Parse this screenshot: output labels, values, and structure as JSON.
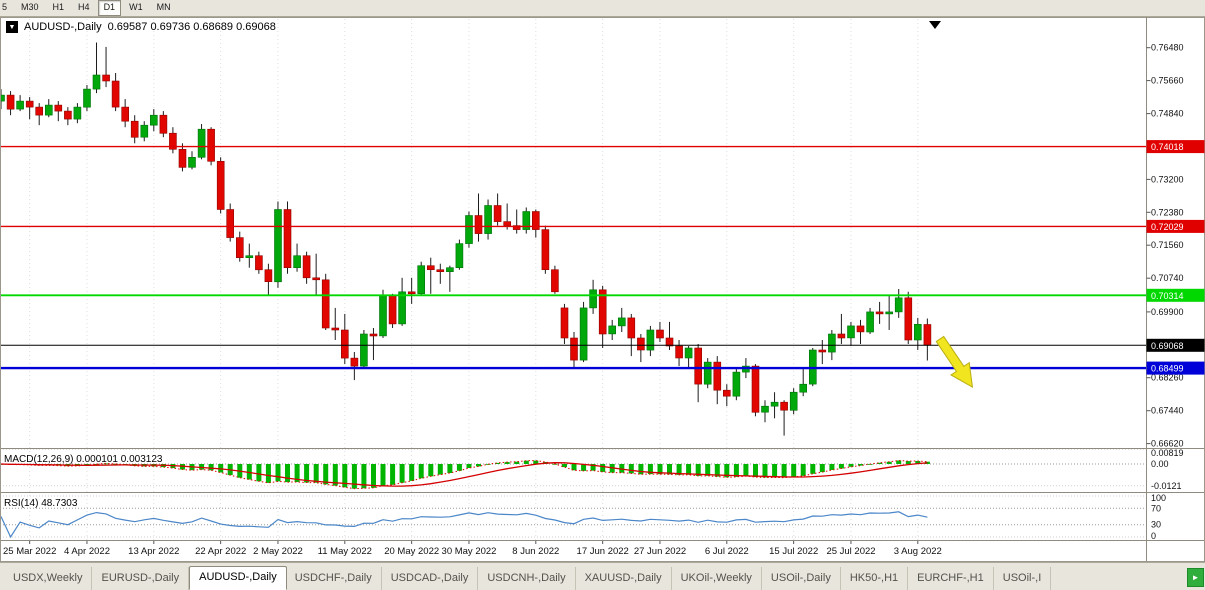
{
  "toolbar": {
    "timeframes": [
      {
        "label": "5",
        "active": false
      },
      {
        "label": "M30",
        "active": false
      },
      {
        "label": "H1",
        "active": false
      },
      {
        "label": "H4",
        "active": false
      },
      {
        "label": "D1",
        "active": true
      },
      {
        "label": "W1",
        "active": false
      },
      {
        "label": "MN",
        "active": false
      }
    ]
  },
  "legend": {
    "icon": "▼",
    "symbol": "AUDUSD-,Daily",
    "ohlc_text": "0.69587 0.69736 0.68689 0.69068"
  },
  "indicators": {
    "macd_label": "MACD(12,26,9) 0.000101 0.003123",
    "rsi_label": "RSI(14) 48.7303"
  },
  "axis": {
    "price_ticks": [
      "0.76480",
      "0.75660",
      "0.74840",
      "0.73200",
      "0.72380",
      "0.71560",
      "0.70740",
      "0.69900",
      "0.68260",
      "0.67440",
      "0.66620"
    ],
    "macd_ticks": [
      {
        "value": 0.00819,
        "label": "0.00819"
      },
      {
        "value": 0.0,
        "label": "0.00"
      },
      {
        "value": -0.0121,
        "label": "-0.0121"
      }
    ],
    "rsi_ticks": [
      {
        "value": 100,
        "label": "100"
      },
      {
        "value": 70,
        "label": "70"
      },
      {
        "value": 30,
        "label": "30"
      },
      {
        "value": 0,
        "label": "0"
      }
    ]
  },
  "levels": [
    {
      "price": 0.74018,
      "label": "0.74018",
      "color": "#e00000",
      "width": 1.4
    },
    {
      "price": 0.72029,
      "label": "0.72029",
      "color": "#e00000",
      "width": 1.4
    },
    {
      "price": 0.70314,
      "label": "0.70314",
      "color": "#00d800",
      "width": 1.8
    },
    {
      "price": 0.69068,
      "label": "0.69068",
      "color": "#000000",
      "width": 1
    },
    {
      "price": 0.68499,
      "label": "0.68499",
      "color": "#0000d8",
      "width": 2.4
    }
  ],
  "drawings": {
    "arrow_color": "#f0e51e",
    "marker_color": "#000000"
  },
  "tabs": {
    "items": [
      {
        "label": "USDX,Weekly",
        "active": false
      },
      {
        "label": "EURUSD-,Daily",
        "active": false
      },
      {
        "label": "AUDUSD-,Daily",
        "active": true
      },
      {
        "label": "USDCHF-,Daily",
        "active": false
      },
      {
        "label": "USDCAD-,Daily",
        "active": false
      },
      {
        "label": "USDCNH-,Daily",
        "active": false
      },
      {
        "label": "XAUUSD-,Daily",
        "active": false
      },
      {
        "label": "UKOil-,Weekly",
        "active": false
      },
      {
        "label": "USOil-,Daily",
        "active": false
      },
      {
        "label": "HK50-,H1",
        "active": false
      },
      {
        "label": "EURCHF-,H1",
        "active": false
      },
      {
        "label": "USOil-,I",
        "active": false
      }
    ],
    "scroll_right": "►"
  },
  "chart_data": {
    "type": "candlestick",
    "symbol": "AUDUSD",
    "timeframe": "Daily",
    "current_bar": {
      "open": 0.69587,
      "high": 0.69736,
      "low": 0.68689,
      "close": 0.69068
    },
    "colors": {
      "bull": "#00a80b",
      "bear": "#e10600",
      "background": "#ffffff"
    },
    "x_ticks": [
      {
        "i": 3,
        "label": "25 Mar 2022"
      },
      {
        "i": 9,
        "label": "4 Apr 2022"
      },
      {
        "i": 16,
        "label": "13 Apr 2022"
      },
      {
        "i": 23,
        "label": "22 Apr 2022"
      },
      {
        "i": 29,
        "label": "2 May 2022"
      },
      {
        "i": 36,
        "label": "11 May 2022"
      },
      {
        "i": 43,
        "label": "20 May 2022"
      },
      {
        "i": 49,
        "label": "30 May 2022"
      },
      {
        "i": 56,
        "label": "8 Jun 2022"
      },
      {
        "i": 63,
        "label": "17 Jun 2022"
      },
      {
        "i": 69,
        "label": "27 Jun 2022"
      },
      {
        "i": 76,
        "label": "6 Jul 2022"
      },
      {
        "i": 83,
        "label": "15 Jul 2022"
      },
      {
        "i": 89,
        "label": "25 Jul 2022"
      },
      {
        "i": 96,
        "label": "3 Aug 2022"
      }
    ],
    "candles": [
      [
        0.7515,
        0.7545,
        0.7495,
        0.753
      ],
      [
        0.753,
        0.754,
        0.748,
        0.7495
      ],
      [
        0.7495,
        0.753,
        0.749,
        0.7515
      ],
      [
        0.7515,
        0.7525,
        0.747,
        0.75
      ],
      [
        0.75,
        0.751,
        0.7455,
        0.748
      ],
      [
        0.748,
        0.752,
        0.7475,
        0.7505
      ],
      [
        0.7505,
        0.7515,
        0.7465,
        0.749
      ],
      [
        0.749,
        0.75,
        0.7455,
        0.747
      ],
      [
        0.747,
        0.751,
        0.746,
        0.75
      ],
      [
        0.75,
        0.7555,
        0.749,
        0.7545
      ],
      [
        0.7545,
        0.7661,
        0.7535,
        0.758
      ],
      [
        0.758,
        0.765,
        0.755,
        0.7565
      ],
      [
        0.7565,
        0.7585,
        0.749,
        0.75
      ],
      [
        0.75,
        0.752,
        0.745,
        0.7465
      ],
      [
        0.7465,
        0.748,
        0.741,
        0.7425
      ],
      [
        0.7425,
        0.7465,
        0.7415,
        0.7455
      ],
      [
        0.7455,
        0.7495,
        0.744,
        0.748
      ],
      [
        0.748,
        0.749,
        0.7425,
        0.7435
      ],
      [
        0.7435,
        0.745,
        0.7385,
        0.7395
      ],
      [
        0.7395,
        0.741,
        0.734,
        0.735
      ],
      [
        0.735,
        0.739,
        0.7345,
        0.7375
      ],
      [
        0.7375,
        0.7458,
        0.737,
        0.7445
      ],
      [
        0.7445,
        0.745,
        0.7355,
        0.7365
      ],
      [
        0.7365,
        0.7375,
        0.7235,
        0.7245
      ],
      [
        0.7245,
        0.726,
        0.7165,
        0.7175
      ],
      [
        0.7175,
        0.719,
        0.7115,
        0.7125
      ],
      [
        0.7125,
        0.716,
        0.71,
        0.713
      ],
      [
        0.713,
        0.714,
        0.7085,
        0.7095
      ],
      [
        0.7095,
        0.711,
        0.703,
        0.7065
      ],
      [
        0.7065,
        0.7265,
        0.705,
        0.7245
      ],
      [
        0.7245,
        0.7265,
        0.7085,
        0.71
      ],
      [
        0.71,
        0.716,
        0.709,
        0.713
      ],
      [
        0.713,
        0.714,
        0.706,
        0.7075
      ],
      [
        0.7075,
        0.7135,
        0.703,
        0.707
      ],
      [
        0.707,
        0.7085,
        0.6945,
        0.695
      ],
      [
        0.695,
        0.7,
        0.692,
        0.6945
      ],
      [
        0.6945,
        0.6985,
        0.686,
        0.6875
      ],
      [
        0.6875,
        0.689,
        0.682,
        0.6855
      ],
      [
        0.6855,
        0.6945,
        0.685,
        0.6935
      ],
      [
        0.6935,
        0.695,
        0.687,
        0.693
      ],
      [
        0.693,
        0.7045,
        0.6925,
        0.703
      ],
      [
        0.703,
        0.7035,
        0.695,
        0.696
      ],
      [
        0.696,
        0.7075,
        0.6955,
        0.704
      ],
      [
        0.704,
        0.7075,
        0.701,
        0.7035
      ],
      [
        0.7035,
        0.7115,
        0.703,
        0.7105
      ],
      [
        0.7105,
        0.7125,
        0.7035,
        0.7095
      ],
      [
        0.7095,
        0.711,
        0.706,
        0.709
      ],
      [
        0.709,
        0.7105,
        0.704,
        0.71
      ],
      [
        0.71,
        0.717,
        0.7095,
        0.716
      ],
      [
        0.716,
        0.724,
        0.715,
        0.723
      ],
      [
        0.723,
        0.7285,
        0.7165,
        0.7185
      ],
      [
        0.7185,
        0.727,
        0.717,
        0.7255
      ],
      [
        0.7255,
        0.7285,
        0.7205,
        0.7215
      ],
      [
        0.7215,
        0.726,
        0.7195,
        0.7205
      ],
      [
        0.7205,
        0.7245,
        0.7185,
        0.7195
      ],
      [
        0.7195,
        0.725,
        0.7185,
        0.724
      ],
      [
        0.724,
        0.7245,
        0.7175,
        0.7195
      ],
      [
        0.7195,
        0.7205,
        0.7085,
        0.7095
      ],
      [
        0.7095,
        0.7105,
        0.7035,
        0.704
      ],
      [
        0.7,
        0.701,
        0.691,
        0.6925
      ],
      [
        0.6925,
        0.694,
        0.685,
        0.687
      ],
      [
        0.687,
        0.7015,
        0.6865,
        0.7
      ],
      [
        0.7,
        0.707,
        0.6985,
        0.7045
      ],
      [
        0.7045,
        0.7055,
        0.69,
        0.6935
      ],
      [
        0.6935,
        0.697,
        0.692,
        0.6955
      ],
      [
        0.6955,
        0.7,
        0.694,
        0.6975
      ],
      [
        0.6975,
        0.6985,
        0.688,
        0.6925
      ],
      [
        0.6925,
        0.6935,
        0.6865,
        0.6895
      ],
      [
        0.6895,
        0.6955,
        0.688,
        0.6945
      ],
      [
        0.6945,
        0.6965,
        0.6915,
        0.6925
      ],
      [
        0.6925,
        0.6965,
        0.6895,
        0.6905
      ],
      [
        0.6905,
        0.692,
        0.6855,
        0.6875
      ],
      [
        0.6875,
        0.6905,
        0.685,
        0.69
      ],
      [
        0.69,
        0.691,
        0.6765,
        0.681
      ],
      [
        0.681,
        0.6875,
        0.68,
        0.6865
      ],
      [
        0.6865,
        0.688,
        0.676,
        0.6795
      ],
      [
        0.6795,
        0.681,
        0.6755,
        0.678
      ],
      [
        0.678,
        0.685,
        0.677,
        0.684
      ],
      [
        0.684,
        0.6875,
        0.6825,
        0.6855
      ],
      [
        0.6855,
        0.686,
        0.673,
        0.674
      ],
      [
        0.674,
        0.677,
        0.6715,
        0.6755
      ],
      [
        0.6755,
        0.679,
        0.6725,
        0.6765
      ],
      [
        0.6765,
        0.677,
        0.6682,
        0.6745
      ],
      [
        0.6745,
        0.68,
        0.6735,
        0.679
      ],
      [
        0.679,
        0.685,
        0.678,
        0.681
      ],
      [
        0.681,
        0.69,
        0.6805,
        0.6895
      ],
      [
        0.6895,
        0.692,
        0.686,
        0.689
      ],
      [
        0.689,
        0.6945,
        0.687,
        0.6935
      ],
      [
        0.6935,
        0.6985,
        0.691,
        0.6925
      ],
      [
        0.6925,
        0.6965,
        0.6905,
        0.6955
      ],
      [
        0.6955,
        0.697,
        0.691,
        0.694
      ],
      [
        0.694,
        0.7,
        0.6935,
        0.699
      ],
      [
        0.699,
        0.7015,
        0.696,
        0.6985
      ],
      [
        0.6985,
        0.703,
        0.6945,
        0.699
      ],
      [
        0.699,
        0.7047,
        0.6975,
        0.7025
      ],
      [
        0.7025,
        0.704,
        0.691,
        0.692
      ],
      [
        0.692,
        0.6975,
        0.6895,
        0.6959
      ],
      [
        0.69587,
        0.69736,
        0.68689,
        0.69068
      ]
    ],
    "indicator_panels": [
      {
        "name": "MACD",
        "params": "12,26,9",
        "display": "histogram+signal",
        "histogram_color": "#00b400",
        "signal_color": "#d40000"
      },
      {
        "name": "RSI",
        "params": "14",
        "value": 48.7303,
        "line_color": "#4a86c8",
        "levels": [
          70,
          30
        ]
      }
    ]
  }
}
